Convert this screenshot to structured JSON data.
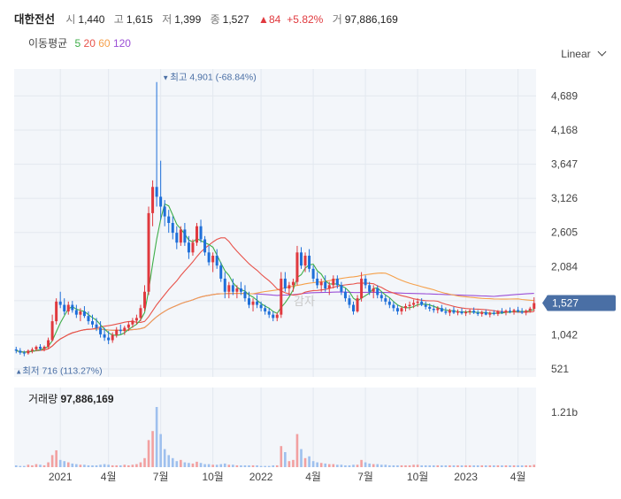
{
  "header": {
    "name": "대한전선",
    "open_label": "시",
    "open": "1,440",
    "high_label": "고",
    "high": "1,615",
    "low_label": "저",
    "low": "1,399",
    "close_label": "종",
    "close": "1,527",
    "change": "84",
    "change_pct": "+5.82%",
    "volume_label": "거",
    "volume": "97,886,169"
  },
  "ma_legend": {
    "label": "이동평균",
    "periods": [
      "5",
      "20",
      "60",
      "120"
    ]
  },
  "scale_selector": "Linear",
  "annotations": {
    "high_text": "최고 4,901 (-68.84%)",
    "low_text": "최저 716 (113.27%)",
    "price_badge": "1,527",
    "watermark": "감자"
  },
  "volume_panel": {
    "label": "거래량",
    "value": "97,886,169",
    "axis_tick": "1.21b"
  },
  "colors": {
    "up": "#e0393e",
    "down": "#1e6fd9",
    "ma5": "#3fae49",
    "ma20": "#e8534b",
    "ma60": "#f5a04a",
    "ma120": "#9b4fd6",
    "badge": "#4a6fa5",
    "vol_up": "#f2a0a0",
    "vol_down": "#9ec0ee"
  },
  "chart_data": {
    "type": "candlestick",
    "y_ticks": [
      4689,
      4168,
      3647,
      3126,
      2605,
      2084,
      1563,
      1042,
      521
    ],
    "y_tick_labels": [
      "4,689",
      "4,168",
      "3,647",
      "3,126",
      "2,605",
      "2,084",
      "",
      "1,042",
      "521"
    ],
    "ylim": [
      400,
      5100
    ],
    "x_tick_labels": [
      "2021",
      "4월",
      "7월",
      "10월",
      "2022",
      "4월",
      "7월",
      "10월",
      "2023",
      "4월"
    ],
    "x_tick_index": [
      11,
      23,
      36,
      49,
      61,
      74,
      87,
      100,
      112,
      125
    ],
    "high": {
      "value": 4901,
      "change_pct": "-68.84%",
      "index": 37
    },
    "low": {
      "value": 716,
      "change_pct": "113.27%",
      "index": 0
    },
    "last_close": 1527,
    "volume_max_tick": 1210000000.0,
    "ohlc": [
      [
        820,
        860,
        760,
        800
      ],
      [
        800,
        840,
        740,
        770
      ],
      [
        770,
        800,
        716,
        760
      ],
      [
        760,
        820,
        740,
        800
      ],
      [
        800,
        850,
        760,
        820
      ],
      [
        820,
        880,
        790,
        860
      ],
      [
        860,
        900,
        800,
        830
      ],
      [
        830,
        880,
        790,
        860
      ],
      [
        860,
        1000,
        840,
        960
      ],
      [
        960,
        1350,
        940,
        1250
      ],
      [
        1250,
        1600,
        1200,
        1550
      ],
      [
        1550,
        1700,
        1450,
        1500
      ],
      [
        1500,
        1600,
        1350,
        1400
      ],
      [
        1400,
        1550,
        1350,
        1500
      ],
      [
        1500,
        1560,
        1380,
        1420
      ],
      [
        1420,
        1500,
        1300,
        1350
      ],
      [
        1350,
        1450,
        1250,
        1400
      ],
      [
        1400,
        1480,
        1300,
        1330
      ],
      [
        1330,
        1400,
        1200,
        1250
      ],
      [
        1250,
        1350,
        1150,
        1200
      ],
      [
        1200,
        1300,
        1100,
        1150
      ],
      [
        1150,
        1250,
        1000,
        1050
      ],
      [
        1050,
        1150,
        950,
        1000
      ],
      [
        1000,
        1100,
        900,
        960
      ],
      [
        960,
        1080,
        920,
        1040
      ],
      [
        1040,
        1160,
        1000,
        1120
      ],
      [
        1120,
        1200,
        1050,
        1100
      ],
      [
        1100,
        1180,
        1040,
        1150
      ],
      [
        1150,
        1250,
        1100,
        1200
      ],
      [
        1200,
        1300,
        1150,
        1260
      ],
      [
        1260,
        1350,
        1200,
        1300
      ],
      [
        1300,
        1500,
        1250,
        1450
      ],
      [
        1450,
        1800,
        1400,
        1700
      ],
      [
        1700,
        3000,
        1650,
        2900
      ],
      [
        2900,
        3400,
        2700,
        3300
      ],
      [
        3300,
        4901,
        3000,
        3150
      ],
      [
        3150,
        3700,
        2800,
        3000
      ],
      [
        3000,
        3100,
        2700,
        2850
      ],
      [
        2850,
        2950,
        2600,
        2750
      ],
      [
        2750,
        2850,
        2500,
        2600
      ],
      [
        2600,
        2700,
        2350,
        2450
      ],
      [
        2450,
        2700,
        2400,
        2650
      ],
      [
        2650,
        2750,
        2400,
        2450
      ],
      [
        2450,
        2550,
        2200,
        2300
      ],
      [
        2300,
        2500,
        2250,
        2450
      ],
      [
        2450,
        2750,
        2400,
        2700
      ],
      [
        2700,
        2800,
        2450,
        2500
      ],
      [
        2500,
        2550,
        2250,
        2300
      ],
      [
        2300,
        2400,
        2100,
        2150
      ],
      [
        2150,
        2300,
        2000,
        2250
      ],
      [
        2250,
        2350,
        2050,
        2100
      ],
      [
        2100,
        2150,
        1850,
        1900
      ],
      [
        1900,
        2000,
        1600,
        1700
      ],
      [
        1700,
        1850,
        1600,
        1800
      ],
      [
        1800,
        1900,
        1650,
        1700
      ],
      [
        1700,
        1800,
        1600,
        1750
      ],
      [
        1750,
        1850,
        1650,
        1700
      ],
      [
        1700,
        1800,
        1550,
        1600
      ],
      [
        1600,
        1700,
        1450,
        1500
      ],
      [
        1500,
        1600,
        1400,
        1550
      ],
      [
        1550,
        1650,
        1450,
        1500
      ],
      [
        1500,
        1550,
        1400,
        1450
      ],
      [
        1450,
        1500,
        1350,
        1400
      ],
      [
        1400,
        1450,
        1300,
        1350
      ],
      [
        1350,
        1400,
        1250,
        1300
      ],
      [
        1300,
        1380,
        1250,
        1350
      ],
      [
        1350,
        2000,
        1300,
        1900
      ],
      [
        1900,
        2000,
        1700,
        1750
      ],
      [
        1750,
        1850,
        1650,
        1800
      ],
      [
        1800,
        1900,
        1700,
        1850
      ],
      [
        1850,
        2400,
        1800,
        2300
      ],
      [
        2300,
        2380,
        2050,
        2100
      ],
      [
        2100,
        2300,
        2000,
        2250
      ],
      [
        2250,
        2350,
        2000,
        2050
      ],
      [
        2050,
        2100,
        1850,
        1900
      ],
      [
        1900,
        2000,
        1750,
        1800
      ],
      [
        1800,
        1900,
        1700,
        1850
      ],
      [
        1850,
        1950,
        1700,
        1750
      ],
      [
        1750,
        1850,
        1650,
        1800
      ],
      [
        1800,
        1950,
        1750,
        1900
      ],
      [
        1900,
        1950,
        1750,
        1800
      ],
      [
        1800,
        1850,
        1650,
        1700
      ],
      [
        1700,
        1750,
        1550,
        1600
      ],
      [
        1600,
        1650,
        1450,
        1500
      ],
      [
        1500,
        1550,
        1350,
        1400
      ],
      [
        1400,
        1650,
        1380,
        1600
      ],
      [
        1600,
        2000,
        1550,
        1900
      ],
      [
        1900,
        1950,
        1750,
        1800
      ],
      [
        1800,
        1850,
        1650,
        1700
      ],
      [
        1700,
        1800,
        1600,
        1750
      ],
      [
        1750,
        1800,
        1600,
        1650
      ],
      [
        1650,
        1700,
        1550,
        1600
      ],
      [
        1600,
        1650,
        1500,
        1550
      ],
      [
        1550,
        1600,
        1450,
        1500
      ],
      [
        1500,
        1550,
        1400,
        1450
      ],
      [
        1450,
        1500,
        1350,
        1400
      ],
      [
        1400,
        1480,
        1350,
        1450
      ],
      [
        1450,
        1520,
        1400,
        1480
      ],
      [
        1480,
        1550,
        1420,
        1500
      ],
      [
        1500,
        1580,
        1450,
        1530
      ],
      [
        1530,
        1600,
        1470,
        1550
      ],
      [
        1550,
        1600,
        1480,
        1500
      ],
      [
        1500,
        1550,
        1430,
        1470
      ],
      [
        1470,
        1520,
        1400,
        1440
      ],
      [
        1440,
        1500,
        1380,
        1420
      ],
      [
        1420,
        1480,
        1370,
        1450
      ],
      [
        1450,
        1500,
        1390,
        1400
      ],
      [
        1400,
        1460,
        1350,
        1380
      ],
      [
        1380,
        1440,
        1330,
        1420
      ],
      [
        1420,
        1470,
        1360,
        1380
      ],
      [
        1380,
        1430,
        1340,
        1400
      ],
      [
        1400,
        1450,
        1350,
        1370
      ],
      [
        1370,
        1420,
        1330,
        1390
      ],
      [
        1390,
        1440,
        1350,
        1410
      ],
      [
        1410,
        1460,
        1360,
        1380
      ],
      [
        1380,
        1420,
        1330,
        1360
      ],
      [
        1360,
        1410,
        1320,
        1390
      ],
      [
        1390,
        1430,
        1340,
        1350
      ],
      [
        1350,
        1400,
        1310,
        1380
      ],
      [
        1380,
        1420,
        1340,
        1360
      ],
      [
        1360,
        1420,
        1330,
        1400
      ],
      [
        1400,
        1450,
        1360,
        1380
      ],
      [
        1380,
        1430,
        1340,
        1410
      ],
      [
        1410,
        1460,
        1370,
        1390
      ],
      [
        1390,
        1440,
        1350,
        1420
      ],
      [
        1420,
        1470,
        1380,
        1400
      ],
      [
        1400,
        1450,
        1360,
        1380
      ],
      [
        1380,
        1430,
        1340,
        1410
      ],
      [
        1410,
        1470,
        1380,
        1443
      ],
      [
        1440,
        1615,
        1399,
        1527
      ]
    ],
    "volumes": [
      0.03,
      0.02,
      0.02,
      0.04,
      0.03,
      0.05,
      0.04,
      0.03,
      0.08,
      0.2,
      0.28,
      0.12,
      0.1,
      0.08,
      0.06,
      0.05,
      0.04,
      0.04,
      0.03,
      0.03,
      0.03,
      0.04,
      0.05,
      0.04,
      0.03,
      0.03,
      0.03,
      0.04,
      0.03,
      0.04,
      0.05,
      0.08,
      0.15,
      0.45,
      0.6,
      1.0,
      0.55,
      0.3,
      0.2,
      0.15,
      0.1,
      0.12,
      0.08,
      0.07,
      0.06,
      0.09,
      0.07,
      0.05,
      0.05,
      0.04,
      0.04,
      0.05,
      0.06,
      0.04,
      0.04,
      0.03,
      0.03,
      0.03,
      0.03,
      0.03,
      0.03,
      0.02,
      0.02,
      0.02,
      0.03,
      0.03,
      0.35,
      0.25,
      0.1,
      0.12,
      0.55,
      0.3,
      0.15,
      0.18,
      0.1,
      0.08,
      0.07,
      0.06,
      0.05,
      0.05,
      0.04,
      0.04,
      0.03,
      0.03,
      0.04,
      0.04,
      0.12,
      0.08,
      0.06,
      0.05,
      0.05,
      0.04,
      0.04,
      0.03,
      0.03,
      0.03,
      0.03,
      0.03,
      0.03,
      0.04,
      0.04,
      0.03,
      0.03,
      0.03,
      0.03,
      0.03,
      0.03,
      0.03,
      0.03,
      0.03,
      0.03,
      0.03,
      0.03,
      0.03,
      0.03,
      0.03,
      0.03,
      0.03,
      0.03,
      0.03,
      0.03,
      0.03,
      0.03,
      0.03,
      0.03,
      0.03,
      0.03,
      0.03,
      0.03,
      0.04
    ]
  }
}
